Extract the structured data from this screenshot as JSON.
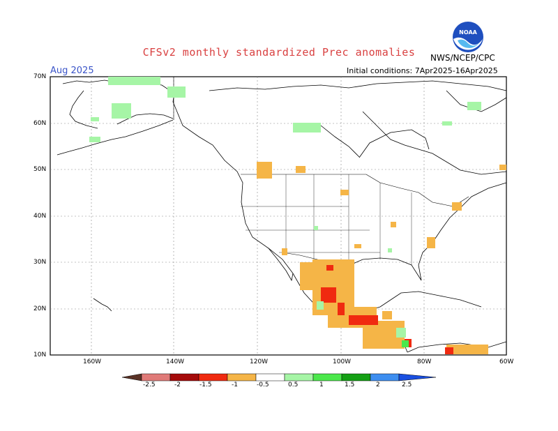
{
  "header": {
    "title": "CFSv2 monthly standardized Prec anomalies",
    "month": "Aug 2025",
    "initial_conditions": "Initial conditions: 7Apr2025-16Apr2025",
    "agency": "NWS/NCEP/CPC",
    "logo_text": "NOAA"
  },
  "map": {
    "lat_labels": [
      "70N",
      "60N",
      "50N",
      "40N",
      "30N",
      "20N",
      "10N"
    ],
    "lon_labels": [
      "160W",
      "140W",
      "120W",
      "100W",
      "80W",
      "60W"
    ]
  },
  "legend": {
    "labels": [
      "-2.5",
      "-2",
      "-1.5",
      "-1",
      "-0.5",
      "0.5",
      "1",
      "1.5",
      "2",
      "2.5"
    ],
    "colors": {
      "below_neg2_5": "#5a3226",
      "neg2_5_to_neg2": "#e07a78",
      "neg2_to_neg1_5": "#a50a0a",
      "neg1_5_to_neg1": "#f02a10",
      "neg1_to_neg0_5": "#f5b547",
      "pos0_5_to_1": "#a6f5a6",
      "pos1_to_1_5": "#4be84b",
      "pos1_5_to_2": "#14a014",
      "pos2_to_2_5": "#3d8ef0",
      "above_2_5": "#1a4fe0"
    }
  }
}
